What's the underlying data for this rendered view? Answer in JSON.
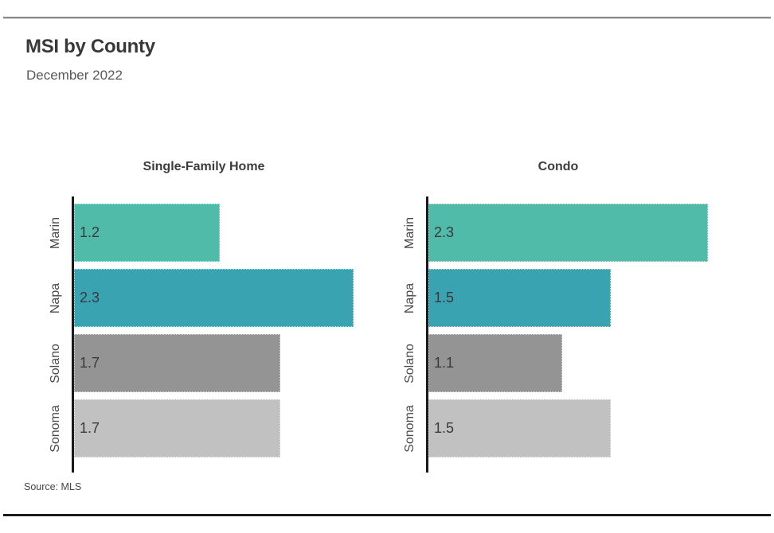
{
  "header": {
    "title": "MSI by County",
    "subtitle": "December 2022"
  },
  "footer": {
    "source": "Source: MLS"
  },
  "colors": {
    "marin_green": "#50bba8",
    "napa_teal": "#3aa3b2",
    "solano_gray": "#949494",
    "sonoma_light_gray": "#c1c1c1",
    "axis": "#1a1a1a",
    "top_rule": "#8a8a8a",
    "bottom_rule": "#1b1b1b"
  },
  "chart_data": [
    {
      "type": "bar",
      "orientation": "horizontal",
      "title": "Single-Family Home",
      "categories": [
        "Marin",
        "Napa",
        "Solano",
        "Sonoma"
      ],
      "values": [
        1.2,
        2.3,
        1.7,
        1.7
      ],
      "bar_colors": [
        "#50bba8",
        "#3aa3b2",
        "#949494",
        "#c1c1c1"
      ],
      "xlim": [
        0,
        2.4
      ],
      "value_labels_inside_bars": true,
      "grid": false,
      "legend": false
    },
    {
      "type": "bar",
      "orientation": "horizontal",
      "title": "Condo",
      "categories": [
        "Marin",
        "Napa",
        "Solano",
        "Sonoma"
      ],
      "values": [
        2.3,
        1.5,
        1.1,
        1.5
      ],
      "bar_colors": [
        "#50bba8",
        "#3aa3b2",
        "#949494",
        "#c1c1c1"
      ],
      "xlim": [
        0,
        2.4
      ],
      "value_labels_inside_bars": true,
      "grid": false,
      "legend": false
    }
  ]
}
